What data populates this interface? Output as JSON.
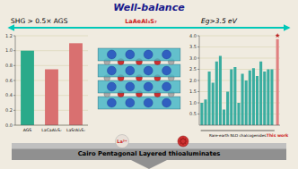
{
  "chart_data": [
    {
      "type": "bar",
      "title": "SHG > 0.5× AGS",
      "categories": [
        "AGS",
        "LaCaAl₃S₇",
        "LaSrAl₃S₇"
      ],
      "values": [
        1.0,
        0.75,
        1.1
      ],
      "colors": [
        "#2aaa8a",
        "#d97070",
        "#d97070"
      ],
      "ylim": [
        0,
        1.2
      ],
      "yticks": [
        {
          "value": 0,
          "label": "0.0"
        },
        0.2,
        0.4,
        0.6,
        0.8,
        {
          "value": 1.0,
          "label": "1.0"
        },
        1.2
      ],
      "grid": true,
      "annotations": [
        "Well-balance",
        "LaAeAl₃S₇",
        "Cairo Pentagonal Layered thioaluminates",
        "La³⁺"
      ]
    },
    {
      "type": "bar",
      "title": "Eg>3.5 eV",
      "categories": [
        null,
        null,
        null,
        null,
        null,
        null,
        null,
        null,
        null,
        null,
        null,
        null,
        null,
        null,
        null,
        null,
        null,
        null,
        null,
        null,
        "This work"
      ],
      "values": [
        1.0,
        1.15,
        2.4,
        1.9,
        2.85,
        3.1,
        0.7,
        1.5,
        2.5,
        2.6,
        1.0,
        2.3,
        2.0,
        2.45,
        2.55,
        2.2,
        2.85,
        2.4,
        2.5,
        2.5,
        3.85
      ],
      "colors": [
        "#3aada0",
        "#3aada0",
        "#3aada0",
        "#3aada0",
        "#3aada0",
        "#3aada0",
        "#3aada0",
        "#3aada0",
        "#3aada0",
        "#3aada0",
        "#3aada0",
        "#3aada0",
        "#3aada0",
        "#3aada0",
        "#3aada0",
        "#3aada0",
        "#3aada0",
        "#3aada0",
        "#3aada0",
        "#3aada0",
        "#e08080"
      ],
      "ylim": [
        0,
        4.0
      ],
      "yticks": [
        0.5,
        {
          "value": 1.0,
          "label": "1.0"
        },
        1.5,
        {
          "value": 2.0,
          "label": "2.0"
        },
        2.5,
        {
          "value": 3.0,
          "label": "3.0"
        },
        3.5,
        {
          "value": 4.0,
          "label": "4.0"
        }
      ],
      "grid": true,
      "annotations": [
        "Rare-earth NLO chalcogenides"
      ]
    }
  ]
}
